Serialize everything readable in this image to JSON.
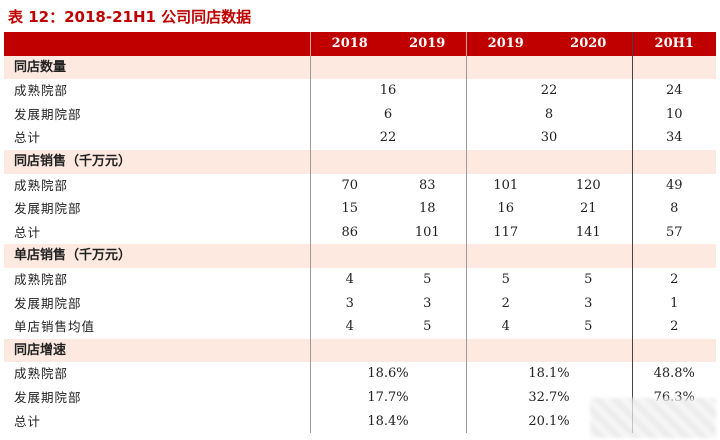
{
  "caption": "表 12：2018-21H1 公司同店数据",
  "header": {
    "label": "",
    "cols": [
      "2018",
      "2019",
      "2019",
      "2020",
      "20H1"
    ]
  },
  "sections": [
    {
      "title": "同店数量",
      "rows": [
        {
          "label": "成熟院部",
          "a": "16",
          "b": "22",
          "c": "24"
        },
        {
          "label": "发展期院部",
          "a": "6",
          "b": "8",
          "c": "10"
        },
        {
          "label": "总计",
          "a": "22",
          "b": "30",
          "c": "34"
        }
      ]
    },
    {
      "title": "同店销售（千万元）",
      "rows": [
        {
          "label": "成熟院部",
          "v": [
            "70",
            "83",
            "101",
            "120",
            "49"
          ]
        },
        {
          "label": "发展期院部",
          "v": [
            "15",
            "18",
            "16",
            "21",
            "8"
          ]
        },
        {
          "label": "总计",
          "v": [
            "86",
            "101",
            "117",
            "141",
            "57"
          ]
        }
      ]
    },
    {
      "title": "单店销售（千万元）",
      "rows": [
        {
          "label": "成熟院部",
          "v": [
            "4",
            "5",
            "5",
            "5",
            "2"
          ]
        },
        {
          "label": "发展期院部",
          "v": [
            "3",
            "3",
            "2",
            "3",
            "1"
          ]
        },
        {
          "label": "单店销售均值",
          "v": [
            "4",
            "5",
            "4",
            "5",
            "2"
          ]
        }
      ]
    },
    {
      "title": "同店增速",
      "rows": [
        {
          "label": "成熟院部",
          "a": "18.6%",
          "b": "18.1%",
          "c": "48.8%"
        },
        {
          "label": "发展期院部",
          "a": "17.7%",
          "b": "32.7%",
          "c": "76.3%"
        },
        {
          "label": "总计",
          "a": "18.4%",
          "b": "20.1%",
          "c": ""
        }
      ]
    }
  ]
}
